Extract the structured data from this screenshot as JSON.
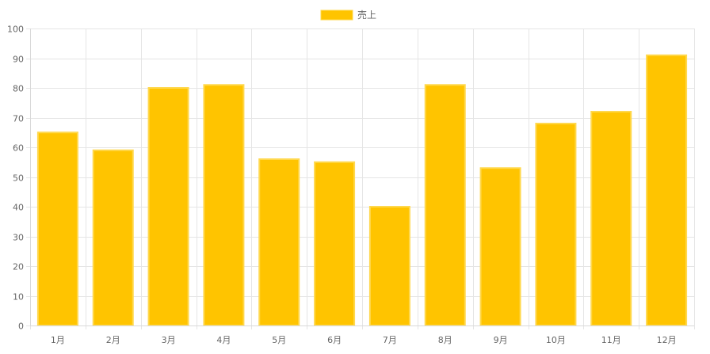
{
  "chart_data": {
    "type": "bar",
    "categories": [
      "1月",
      "2月",
      "3月",
      "4月",
      "5月",
      "6月",
      "7月",
      "8月",
      "9月",
      "10月",
      "11月",
      "12月"
    ],
    "series": [
      {
        "name": "売上",
        "values": [
          65,
          59,
          80,
          81,
          56,
          55,
          40,
          81,
          53,
          68,
          72,
          91
        ]
      }
    ],
    "ylim": [
      0,
      100
    ],
    "yticks": [
      "0",
      "10",
      "20",
      "30",
      "40",
      "50",
      "60",
      "70",
      "80",
      "90",
      "100"
    ],
    "grid": true,
    "legend_position": "top",
    "colors": {
      "bar_fill": "#ffc400",
      "bar_border": "#ffd84d",
      "grid": "#e5e5e5",
      "axis": "#d9d9d9"
    }
  }
}
